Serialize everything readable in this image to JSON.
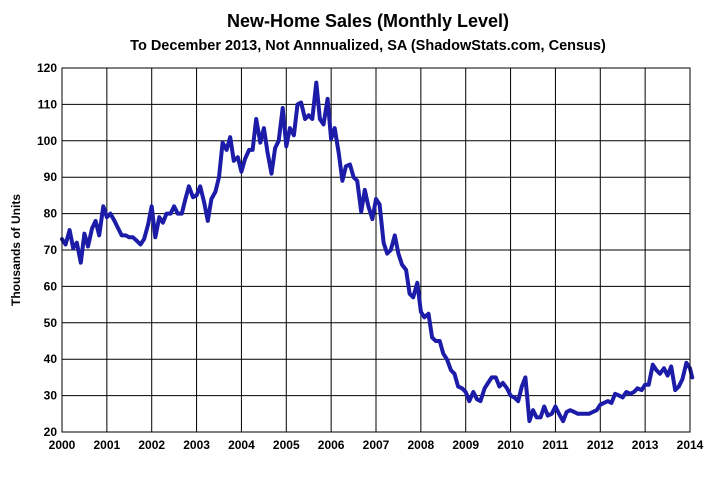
{
  "chart_data": {
    "type": "line",
    "title": "New-Home Sales (Monthly Level)",
    "subtitle": "To December 2013, Not Annnualized, SA (ShadowStats.com, Census)",
    "xlabel": "",
    "ylabel": "Thousands of Units",
    "xlim": [
      2000,
      2014
    ],
    "ylim": [
      20,
      120
    ],
    "y_ticks": [
      20,
      30,
      40,
      50,
      60,
      70,
      80,
      90,
      100,
      110,
      120
    ],
    "x_ticks": [
      2000,
      2001,
      2002,
      2003,
      2004,
      2005,
      2006,
      2007,
      2008,
      2009,
      2010,
      2011,
      2012,
      2013,
      2014
    ],
    "grid": true,
    "line_color": "#1c1ca8",
    "series": [
      {
        "points": [
          [
            2000.0,
            73
          ],
          [
            2000.08,
            71.5
          ],
          [
            2000.17,
            75.5
          ],
          [
            2000.25,
            70.5
          ],
          [
            2000.33,
            72
          ],
          [
            2000.42,
            66.5
          ],
          [
            2000.5,
            74.5
          ],
          [
            2000.58,
            71
          ],
          [
            2000.67,
            76
          ],
          [
            2000.75,
            78
          ],
          [
            2000.83,
            74
          ],
          [
            2000.92,
            82
          ],
          [
            2001.0,
            79
          ],
          [
            2001.08,
            80
          ],
          [
            2001.17,
            78
          ],
          [
            2001.25,
            76
          ],
          [
            2001.33,
            74
          ],
          [
            2001.42,
            74
          ],
          [
            2001.5,
            73.5
          ],
          [
            2001.58,
            73.5
          ],
          [
            2001.67,
            72.5
          ],
          [
            2001.75,
            71.5
          ],
          [
            2001.83,
            73
          ],
          [
            2001.92,
            77
          ],
          [
            2002.0,
            82
          ],
          [
            2002.08,
            73.5
          ],
          [
            2002.17,
            79
          ],
          [
            2002.25,
            77.5
          ],
          [
            2002.33,
            80
          ],
          [
            2002.42,
            80
          ],
          [
            2002.5,
            82
          ],
          [
            2002.58,
            80
          ],
          [
            2002.67,
            80
          ],
          [
            2002.75,
            84
          ],
          [
            2002.83,
            87.5
          ],
          [
            2002.92,
            84.5
          ],
          [
            2003.0,
            85
          ],
          [
            2003.08,
            87.5
          ],
          [
            2003.17,
            83
          ],
          [
            2003.25,
            78
          ],
          [
            2003.33,
            84
          ],
          [
            2003.42,
            86
          ],
          [
            2003.5,
            90
          ],
          [
            2003.58,
            99.5
          ],
          [
            2003.67,
            97.5
          ],
          [
            2003.75,
            101
          ],
          [
            2003.83,
            94.5
          ],
          [
            2003.92,
            95.5
          ],
          [
            2004.0,
            91.5
          ],
          [
            2004.08,
            95
          ],
          [
            2004.17,
            97.5
          ],
          [
            2004.25,
            97.5
          ],
          [
            2004.33,
            106
          ],
          [
            2004.42,
            99.5
          ],
          [
            2004.5,
            103.5
          ],
          [
            2004.58,
            97
          ],
          [
            2004.67,
            91
          ],
          [
            2004.75,
            98
          ],
          [
            2004.83,
            100
          ],
          [
            2004.92,
            109
          ],
          [
            2005.0,
            98.5
          ],
          [
            2005.08,
            103.5
          ],
          [
            2005.17,
            101.5
          ],
          [
            2005.25,
            110
          ],
          [
            2005.33,
            110.5
          ],
          [
            2005.42,
            106
          ],
          [
            2005.5,
            107
          ],
          [
            2005.58,
            106
          ],
          [
            2005.67,
            116
          ],
          [
            2005.75,
            106
          ],
          [
            2005.83,
            104.5
          ],
          [
            2005.92,
            111.5
          ],
          [
            2006.0,
            100.5
          ],
          [
            2006.08,
            103.5
          ],
          [
            2006.17,
            96.5
          ],
          [
            2006.25,
            89
          ],
          [
            2006.33,
            93
          ],
          [
            2006.42,
            93.5
          ],
          [
            2006.5,
            90
          ],
          [
            2006.58,
            89
          ],
          [
            2006.67,
            80.5
          ],
          [
            2006.75,
            86.5
          ],
          [
            2006.83,
            82
          ],
          [
            2006.92,
            78.5
          ],
          [
            2007.0,
            84
          ],
          [
            2007.08,
            82.5
          ],
          [
            2007.17,
            72
          ],
          [
            2007.25,
            69
          ],
          [
            2007.33,
            70
          ],
          [
            2007.42,
            74
          ],
          [
            2007.5,
            69
          ],
          [
            2007.58,
            66
          ],
          [
            2007.67,
            64.5
          ],
          [
            2007.75,
            58
          ],
          [
            2007.83,
            57
          ],
          [
            2007.92,
            61
          ],
          [
            2008.0,
            53
          ],
          [
            2008.08,
            51.5
          ],
          [
            2008.17,
            52.5
          ],
          [
            2008.25,
            46
          ],
          [
            2008.33,
            45
          ],
          [
            2008.42,
            45
          ],
          [
            2008.5,
            41.5
          ],
          [
            2008.58,
            40
          ],
          [
            2008.67,
            37
          ],
          [
            2008.75,
            36
          ],
          [
            2008.83,
            32.5
          ],
          [
            2008.92,
            32
          ],
          [
            2009.0,
            31
          ],
          [
            2009.08,
            28.5
          ],
          [
            2009.17,
            31
          ],
          [
            2009.25,
            29
          ],
          [
            2009.33,
            28.5
          ],
          [
            2009.42,
            32
          ],
          [
            2009.5,
            33.5
          ],
          [
            2009.58,
            35
          ],
          [
            2009.67,
            35
          ],
          [
            2009.75,
            32.5
          ],
          [
            2009.83,
            33.5
          ],
          [
            2009.92,
            32
          ],
          [
            2010.0,
            30
          ],
          [
            2010.08,
            29.5
          ],
          [
            2010.17,
            28.5
          ],
          [
            2010.25,
            32.5
          ],
          [
            2010.33,
            35
          ],
          [
            2010.42,
            23
          ],
          [
            2010.5,
            26
          ],
          [
            2010.58,
            24
          ],
          [
            2010.67,
            24
          ],
          [
            2010.75,
            27
          ],
          [
            2010.83,
            24.5
          ],
          [
            2010.92,
            25
          ],
          [
            2011.0,
            27
          ],
          [
            2011.08,
            25
          ],
          [
            2011.17,
            23
          ],
          [
            2011.25,
            25.5
          ],
          [
            2011.33,
            26
          ],
          [
            2011.42,
            25.5
          ],
          [
            2011.5,
            25
          ],
          [
            2011.58,
            25
          ],
          [
            2011.67,
            25
          ],
          [
            2011.75,
            25
          ],
          [
            2011.83,
            25.5
          ],
          [
            2011.92,
            26
          ],
          [
            2012.0,
            27.5
          ],
          [
            2012.08,
            28
          ],
          [
            2012.17,
            28.5
          ],
          [
            2012.25,
            28
          ],
          [
            2012.33,
            30.5
          ],
          [
            2012.42,
            30
          ],
          [
            2012.5,
            29.5
          ],
          [
            2012.58,
            31
          ],
          [
            2012.67,
            30.5
          ],
          [
            2012.75,
            31
          ],
          [
            2012.83,
            32
          ],
          [
            2012.92,
            31.5
          ],
          [
            2013.0,
            33
          ],
          [
            2013.08,
            33
          ],
          [
            2013.17,
            38.5
          ],
          [
            2013.25,
            37
          ],
          [
            2013.33,
            36
          ],
          [
            2013.42,
            37.5
          ],
          [
            2013.5,
            35.5
          ],
          [
            2013.58,
            38
          ],
          [
            2013.67,
            31.5
          ],
          [
            2013.75,
            32.5
          ],
          [
            2013.83,
            34.5
          ],
          [
            2013.92,
            39
          ],
          [
            2014.0,
            37.5
          ],
          [
            2014.05,
            35
          ]
        ]
      }
    ]
  }
}
